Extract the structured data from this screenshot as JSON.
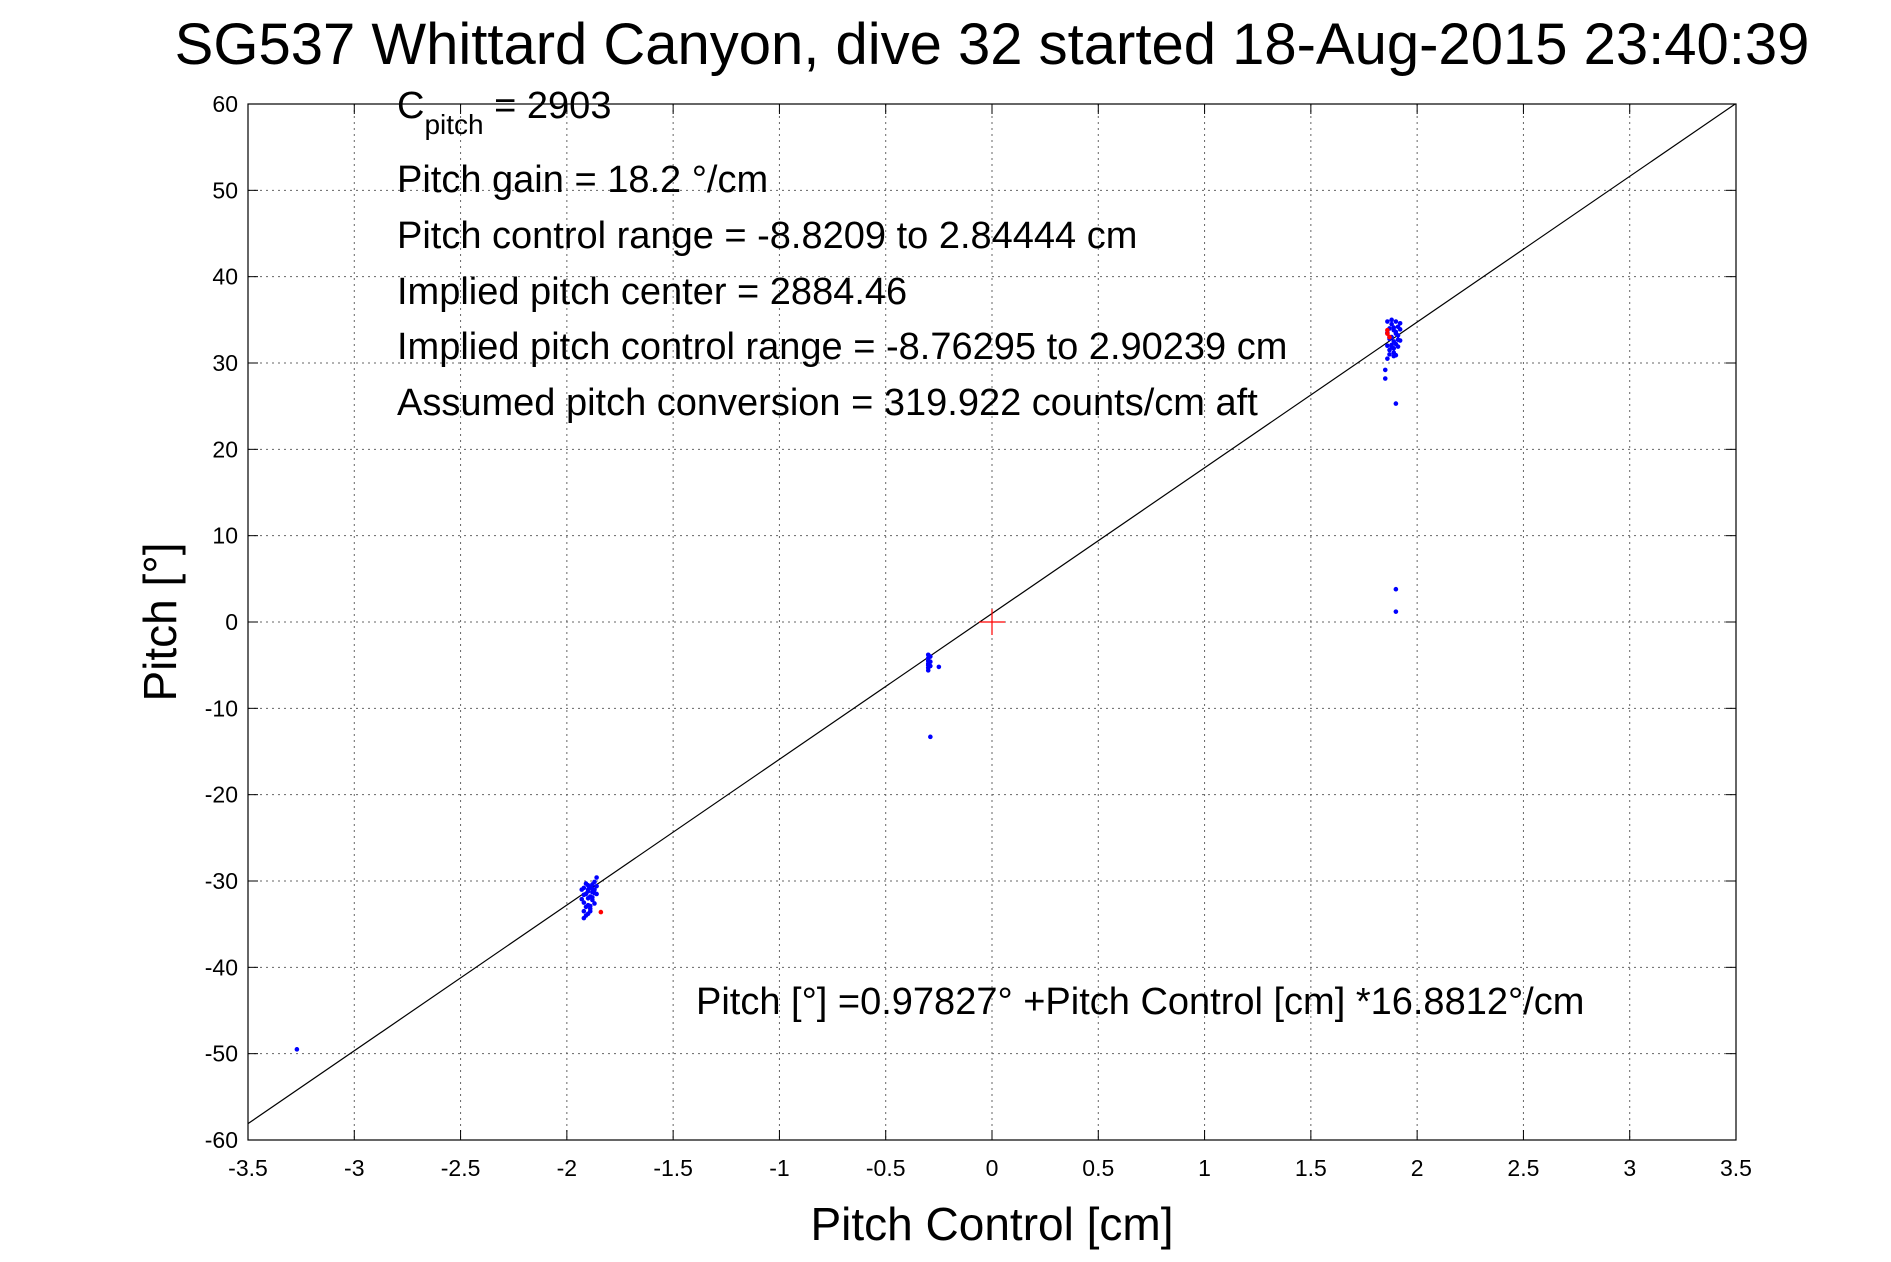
{
  "chart_data": {
    "type": "scatter",
    "title": "SG537 Whittard Canyon, dive 32 started 18-Aug-2015 23:40:39",
    "xlabel": "Pitch Control [cm]",
    "ylabel": "Pitch [°]",
    "xlim": [
      -3.5,
      3.5
    ],
    "ylim": [
      -60,
      60
    ],
    "x_ticks": [
      -3.5,
      -3,
      -2.5,
      -2,
      -1.5,
      -1,
      -0.5,
      0,
      0.5,
      1,
      1.5,
      2,
      2.5,
      3,
      3.5
    ],
    "x_tick_labels": [
      "-3.5",
      "-3",
      "-2.5",
      "-2",
      "-1.5",
      "-1",
      "-0.5",
      "0",
      "0.5",
      "1",
      "1.5",
      "2",
      "2.5",
      "3",
      "3.5"
    ],
    "y_ticks": [
      -60,
      -50,
      -40,
      -30,
      -20,
      -10,
      0,
      10,
      20,
      30,
      40,
      50,
      60
    ],
    "y_tick_labels": [
      "-60",
      "-50",
      "-40",
      "-30",
      "-20",
      "-10",
      "0",
      "10",
      "20",
      "30",
      "40",
      "50",
      "60"
    ],
    "grid": true,
    "annotations": {
      "cpitch_main": "C",
      "cpitch_sub": "pitch",
      "cpitch_value": " = 2903",
      "line2": "Pitch gain = 18.2 °/cm",
      "line3": "Pitch control range = -8.8209 to 2.84444 cm",
      "line4": "Implied pitch center = 2884.46",
      "line5": "Implied pitch control range = -8.76295 to 2.90239 cm",
      "line6": "Assumed pitch conversion = 319.922 counts/cm aft",
      "fit_equation": "Pitch [°] =0.97827° +Pitch Control [cm] *16.8812°/cm"
    },
    "fit_line": {
      "intercept": 0.97827,
      "slope": 16.8812,
      "color": "#000000"
    },
    "center_marker": {
      "x": 0,
      "y": 0,
      "color": "#ff0000"
    },
    "series": [
      {
        "color": "#0000ff",
        "x": [
          -1.93,
          -1.92,
          -1.92,
          -1.91,
          -1.91,
          -1.9,
          -1.9,
          -1.9,
          -1.89,
          -1.89,
          -1.88,
          -1.88,
          -1.88,
          -1.87,
          -1.87,
          -1.86,
          -1.86,
          -1.86,
          -1.92,
          -1.91,
          -1.9,
          -1.89,
          -1.88,
          -1.87,
          -1.92,
          -1.9,
          -1.89,
          -1.87,
          -1.91,
          -1.88,
          -1.93,
          -1.92,
          -1.9,
          -1.89,
          -0.3,
          -0.3,
          -0.3,
          -0.3,
          -0.3,
          -0.3,
          -0.3,
          -0.29,
          -0.29,
          -0.29,
          -0.25,
          -0.29,
          -3.27,
          1.86,
          1.86,
          1.87,
          1.87,
          1.87,
          1.88,
          1.88,
          1.88,
          1.89,
          1.89,
          1.89,
          1.9,
          1.9,
          1.9,
          1.91,
          1.91,
          1.91,
          1.92,
          1.92,
          1.92,
          1.87,
          1.88,
          1.89,
          1.9,
          1.91,
          1.88,
          1.89,
          1.9,
          1.85,
          1.86,
          1.86,
          1.85,
          1.87,
          1.89,
          1.9,
          1.9,
          1.9
        ],
        "y": [
          -31.0,
          -32.5,
          -30.8,
          -31.5,
          -33.0,
          -30.5,
          -32.0,
          -31.2,
          -30.7,
          -31.8,
          -31.3,
          -30.4,
          -32.2,
          -31.0,
          -30.1,
          -30.6,
          -31.5,
          -29.6,
          -33.5,
          -34.0,
          -32.8,
          -33.2,
          -31.9,
          -32.6,
          -31.6,
          -31.0,
          -32.9,
          -31.4,
          -30.3,
          -30.9,
          -32.1,
          -34.3,
          -33.8,
          -33.5,
          -3.8,
          -4.2,
          -4.5,
          -4.8,
          -5.0,
          -5.3,
          -5.6,
          -4.0,
          -5.1,
          -4.6,
          -5.2,
          -13.3,
          -49.5,
          32.0,
          33.5,
          31.5,
          32.8,
          34.0,
          31.8,
          33.0,
          34.5,
          32.5,
          33.8,
          31.2,
          32.2,
          33.6,
          34.8,
          31.9,
          33.2,
          34.2,
          32.6,
          33.9,
          34.6,
          33.0,
          32.1,
          34.1,
          33.4,
          32.7,
          35.0,
          31.7,
          30.9,
          29.2,
          30.5,
          34.8,
          28.2,
          31.0,
          30.8,
          25.3,
          3.8,
          1.2
        ]
      },
      {
        "color": "#ff0000",
        "x": [
          -1.84,
          1.86,
          1.87,
          1.86
        ],
        "y": [
          -33.6,
          33.4,
          33.0,
          33.8
        ]
      }
    ]
  }
}
